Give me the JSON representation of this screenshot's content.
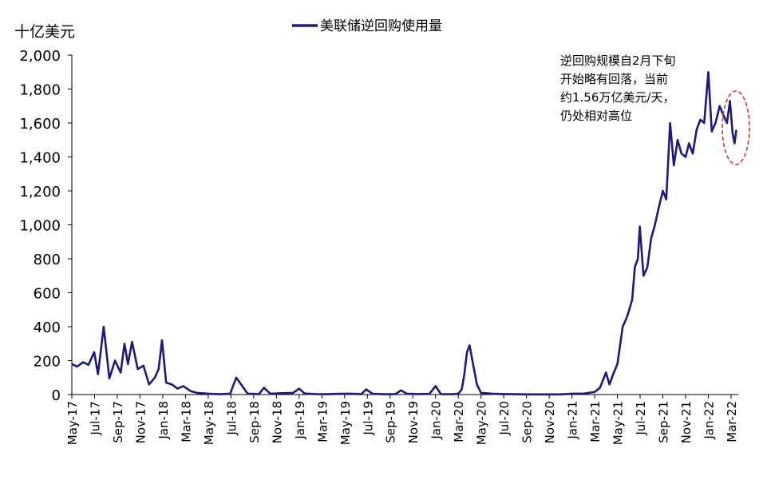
{
  "chart_data": {
    "type": "line",
    "title": "",
    "ylabel": "十亿美元",
    "xlabel": "",
    "ylim": [
      0,
      2000
    ],
    "yticks": [
      0,
      200,
      400,
      600,
      800,
      1000,
      1200,
      1400,
      1600,
      1800,
      2000
    ],
    "ytick_labels": [
      "0",
      "200",
      "400",
      "600",
      "800",
      "1,000",
      "1,200",
      "1,400",
      "1,600",
      "1,800",
      "2,000"
    ],
    "xticks": [
      "May-17",
      "Jul-17",
      "Sep-17",
      "Nov-17",
      "Jan-18",
      "Mar-18",
      "May-18",
      "Jul-18",
      "Sep-18",
      "Nov-18",
      "Jan-19",
      "Mar-19",
      "May-19",
      "Jul-19",
      "Sep-19",
      "Nov-19",
      "Jan-20",
      "Mar-20",
      "May-20",
      "Jul-20",
      "Sep-20",
      "Nov-20",
      "Jan-21",
      "Mar-21",
      "May-21",
      "Jul-21",
      "Sep-21",
      "Nov-21",
      "Jan-22",
      "Mar-22"
    ],
    "legend_position": "top-center",
    "grid": false,
    "series": [
      {
        "name": "美联储逆回购使用量",
        "color": "#1a1a80",
        "x": [
          "2017-05-01",
          "2017-05-15",
          "2017-06-01",
          "2017-06-15",
          "2017-06-30",
          "2017-07-10",
          "2017-07-25",
          "2017-08-10",
          "2017-08-25",
          "2017-09-10",
          "2017-09-20",
          "2017-09-29",
          "2017-10-10",
          "2017-10-25",
          "2017-11-10",
          "2017-11-25",
          "2017-12-10",
          "2017-12-20",
          "2017-12-29",
          "2018-01-10",
          "2018-01-25",
          "2018-02-10",
          "2018-02-25",
          "2018-03-15",
          "2018-04-01",
          "2018-05-01",
          "2018-06-01",
          "2018-06-29",
          "2018-07-15",
          "2018-08-15",
          "2018-09-15",
          "2018-09-28",
          "2018-10-15",
          "2018-11-15",
          "2018-12-15",
          "2018-12-31",
          "2019-01-15",
          "2019-02-15",
          "2019-03-15",
          "2019-04-15",
          "2019-05-15",
          "2019-06-15",
          "2019-06-28",
          "2019-07-15",
          "2019-08-15",
          "2019-09-15",
          "2019-09-30",
          "2019-10-15",
          "2019-11-15",
          "2019-12-15",
          "2019-12-31",
          "2020-01-15",
          "2020-02-15",
          "2020-03-01",
          "2020-03-10",
          "2020-03-17",
          "2020-03-24",
          "2020-03-31",
          "2020-04-10",
          "2020-04-20",
          "2020-05-01",
          "2020-06-01",
          "2020-07-01",
          "2020-08-01",
          "2020-09-01",
          "2020-10-01",
          "2020-11-01",
          "2020-12-01",
          "2021-01-01",
          "2021-02-01",
          "2021-03-01",
          "2021-03-15",
          "2021-03-31",
          "2021-04-10",
          "2021-04-20",
          "2021-05-01",
          "2021-05-15",
          "2021-05-25",
          "2021-06-01",
          "2021-06-10",
          "2021-06-17",
          "2021-06-25",
          "2021-06-30",
          "2021-07-10",
          "2021-07-20",
          "2021-07-30",
          "2021-08-10",
          "2021-08-20",
          "2021-08-31",
          "2021-09-10",
          "2021-09-20",
          "2021-09-30",
          "2021-10-10",
          "2021-10-20",
          "2021-10-31",
          "2021-11-10",
          "2021-11-20",
          "2021-11-30",
          "2021-12-10",
          "2021-12-20",
          "2021-12-31",
          "2022-01-10",
          "2022-01-20",
          "2022-01-31",
          "2022-02-10",
          "2022-02-20",
          "2022-02-28",
          "2022-03-05",
          "2022-03-10",
          "2022-03-15"
        ],
        "values": [
          180,
          165,
          190,
          175,
          250,
          120,
          400,
          95,
          200,
          130,
          300,
          180,
          310,
          150,
          170,
          60,
          100,
          150,
          320,
          70,
          60,
          35,
          50,
          20,
          10,
          5,
          2,
          5,
          100,
          5,
          3,
          40,
          5,
          8,
          10,
          35,
          6,
          3,
          2,
          4,
          5,
          3,
          30,
          4,
          2,
          3,
          25,
          5,
          3,
          4,
          50,
          3,
          2,
          5,
          30,
          120,
          250,
          290,
          180,
          60,
          10,
          5,
          3,
          2,
          1,
          1,
          1,
          1,
          5,
          5,
          15,
          40,
          130,
          60,
          120,
          180,
          400,
          450,
          490,
          560,
          750,
          800,
          990,
          700,
          750,
          920,
          1000,
          1100,
          1200,
          1150,
          1600,
          1350,
          1500,
          1420,
          1400,
          1480,
          1420,
          1560,
          1620,
          1600,
          1900,
          1550,
          1600,
          1700,
          1650,
          1600,
          1730,
          1540,
          1480,
          1560
        ]
      }
    ],
    "annotation": {
      "lines": [
        "逆回购规模自2月下旬",
        "开始略有回落，当前",
        "约1.56万亿美元/天，",
        "仍处相对高位"
      ]
    }
  }
}
